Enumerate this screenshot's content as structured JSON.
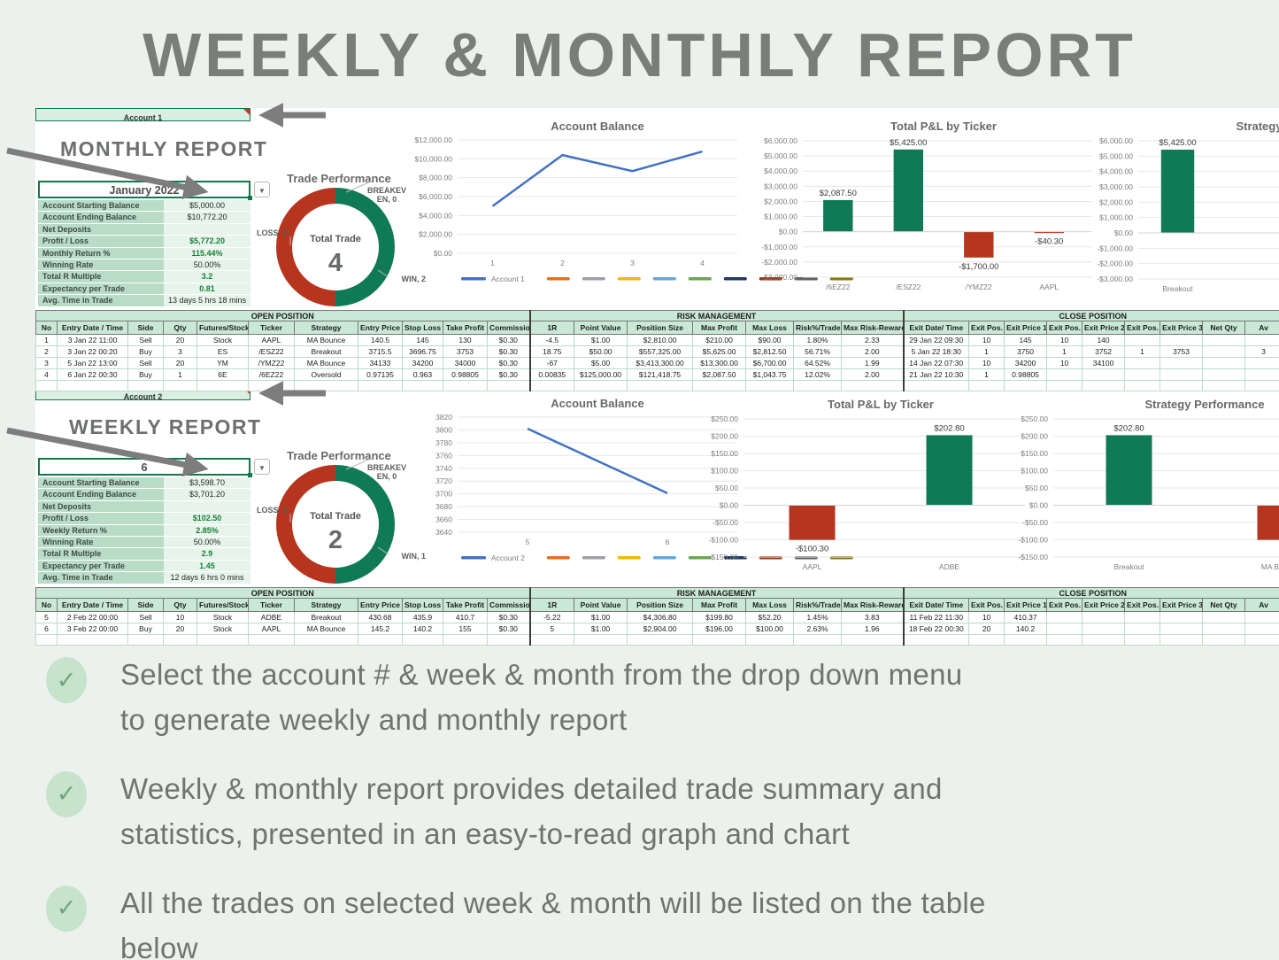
{
  "page": {
    "title": "WEEKLY & MONTHLY REPORT"
  },
  "colors": {
    "green": "#107a57",
    "red": "#b5351e",
    "blue": "#4472c4",
    "accent_text": "#188038",
    "legend_extras": [
      "#e2711d",
      "#9aa0a6",
      "#f2b50a",
      "#62a8dc",
      "#6aa84f",
      "#1f3864",
      "#9c3410",
      "#616161",
      "#8a7a0d"
    ]
  },
  "monthly": {
    "tab": "Account 1",
    "heading": "MONTHLY REPORT",
    "dropdown": {
      "value": "January 2022"
    },
    "stats": [
      {
        "label": "Account Starting Balance",
        "value": "$5,000.00",
        "accent": false
      },
      {
        "label": "Account Ending Balance",
        "value": "$10,772.20",
        "accent": false
      },
      {
        "label": "Net Deposits",
        "value": "",
        "accent": false
      },
      {
        "label": "Profit / Loss",
        "value": "$5,772.20",
        "accent": true
      },
      {
        "label": "Monthly Return %",
        "value": "115.44%",
        "accent": true
      },
      {
        "label": "Winning Rate",
        "value": "50.00%",
        "accent": false
      },
      {
        "label": "Total R Multiple",
        "value": "3.2",
        "accent": true
      },
      {
        "label": "Expectancy per Trade",
        "value": "0.81",
        "accent": true
      },
      {
        "label": "Avg. Time in Trade",
        "value": "13 days 5 hrs 18 mins",
        "accent": false
      }
    ],
    "donut": {
      "title": "Trade Performance",
      "center_label": "Total Trade",
      "total": "4",
      "breakeven_label": "BREAKEVEN, 0",
      "loss_label": "LOSS, 2",
      "win_label": "WIN, 2",
      "win": 2,
      "loss": 2,
      "breakeven": 0
    },
    "balance_chart": {
      "type": "line",
      "title": "Account Balance",
      "legend": "Account 1",
      "x": [
        "1",
        "2",
        "3",
        "4"
      ],
      "values": [
        5000,
        10400,
        8700,
        10772
      ],
      "ymin": 0,
      "ymax": 12000,
      "ystep": 2000,
      "tick_format": "usd"
    },
    "pnl_chart": {
      "type": "bar",
      "title": "Total P&L by Ticker",
      "categories": [
        "/6EZ22",
        "/ESZ22",
        "/YMZ22",
        "AAPL"
      ],
      "values": [
        2087.5,
        5425,
        -1700,
        -40.3
      ],
      "value_labels": [
        "$2,087.50",
        "$5,425.00",
        "-$1,700.00",
        "-$40.30"
      ],
      "ymin": -3000,
      "ymax": 6000,
      "ystep": 1000,
      "tick_format": "usd"
    },
    "strategy_chart": {
      "type": "bar",
      "title": "Strategy Performance",
      "categories": [
        "Breakout"
      ],
      "values": [
        5425
      ],
      "value_labels": [
        "$5,425.00"
      ],
      "ymin": -3000,
      "ymax": 6000,
      "ystep": 1000,
      "tick_format": "usd"
    },
    "trades": {
      "section_headers": [
        "OPEN POSITION",
        "RISK MANAGEMENT",
        "CLOSE POSITION"
      ],
      "columns": [
        "No",
        "Entry Date / Time",
        "Side",
        "Qty",
        "Futures/Stock",
        "Ticker",
        "Strategy",
        "Entry Price",
        "Stop Loss",
        "Take Profit",
        "Commission",
        "1R",
        "Point Value",
        "Position Size",
        "Max Profit",
        "Max Loss",
        "Risk%/Trade",
        "Max Risk-Reward",
        "Exit Date/ Time",
        "Exit Pos. 1",
        "Exit Price 1",
        "Exit Pos. 2",
        "Exit Price 2",
        "Exit Pos. 3",
        "Exit Price 3",
        "Net Qty",
        "Av"
      ],
      "rows": [
        [
          "1",
          "3 Jan 22 11:00",
          "Sell",
          "20",
          "Stock",
          "AAPL",
          "MA Bounce",
          "140.5",
          "145",
          "130",
          "$0.30",
          "-4.5",
          "$1.00",
          "$2,810.00",
          "$210.00",
          "$90.00",
          "1.80%",
          "2.33",
          "29 Jan 22 09:30",
          "10",
          "145",
          "10",
          "140",
          "",
          "",
          "",
          ""
        ],
        [
          "2",
          "3 Jan 22 00:20",
          "Buy",
          "3",
          "ES",
          "/ESZ22",
          "Breakout",
          "3715.5",
          "3696.75",
          "3753",
          "$0.30",
          "18.75",
          "$50.00",
          "$557,325.00",
          "$5,625.00",
          "$2,812.50",
          "56.71%",
          "2.00",
          "5 Jan 22 18:30",
          "1",
          "3750",
          "1",
          "3752",
          "1",
          "3753",
          "",
          "3"
        ],
        [
          "3",
          "5 Jan 22 13:00",
          "Sell",
          "20",
          "YM",
          "/YMZ22",
          "MA Bounce",
          "34133",
          "34200",
          "34000",
          "$0.30",
          "-67",
          "$5.00",
          "$3,413,300.00",
          "$13,300.00",
          "$6,700.00",
          "64.52%",
          "1.99",
          "14 Jan 22 07:30",
          "10",
          "34200",
          "10",
          "34100",
          "",
          "",
          "",
          ""
        ],
        [
          "4",
          "6 Jan 22 00:30",
          "Buy",
          "1",
          "6E",
          "/6EZ22",
          "Oversold",
          "0.97135",
          "0.963",
          "0.98805",
          "$0.30",
          "0.00835",
          "$125,000.00",
          "$121,418.75",
          "$2,087.50",
          "$1,043.75",
          "12.02%",
          "2.00",
          "21 Jan 22 10:30",
          "1",
          "0.98805",
          "",
          "",
          "",
          "",
          "",
          ""
        ]
      ]
    }
  },
  "weekly": {
    "tab": "Account 2",
    "heading": "WEEKLY REPORT",
    "dropdown": {
      "value": "6"
    },
    "stats": [
      {
        "label": "Account Starting Balance",
        "value": "$3,598.70",
        "accent": false
      },
      {
        "label": "Account Ending Balance",
        "value": "$3,701.20",
        "accent": false
      },
      {
        "label": "Net Deposits",
        "value": "",
        "accent": false
      },
      {
        "label": "Profit / Loss",
        "value": "$102.50",
        "accent": true
      },
      {
        "label": "Weekly Return %",
        "value": "2.85%",
        "accent": true
      },
      {
        "label": "Winning Rate",
        "value": "50.00%",
        "accent": false
      },
      {
        "label": "Total R Multiple",
        "value": "2.9",
        "accent": true
      },
      {
        "label": "Expectancy per Trade",
        "value": "1.45",
        "accent": true
      },
      {
        "label": "Avg. Time in Trade",
        "value": "12 days 6 hrs 0 mins",
        "accent": false
      }
    ],
    "donut": {
      "title": "Trade Performance",
      "center_label": "Total Trade",
      "total": "2",
      "breakeven_label": "BREAKEVEN, 0",
      "loss_label": "LOSS, 1",
      "win_label": "WIN, 1",
      "win": 1,
      "loss": 1,
      "breakeven": 0
    },
    "balance_chart": {
      "type": "line",
      "title": "Account Balance",
      "legend": "Account 2",
      "x": [
        "5",
        "6"
      ],
      "values": [
        3802,
        3701
      ],
      "ymin": 3640,
      "ymax": 3820,
      "ystep": 20,
      "tick_format": "plain"
    },
    "pnl_chart": {
      "type": "bar",
      "title": "Total P&L by Ticker",
      "categories": [
        "AAPL",
        "ADBE"
      ],
      "values": [
        -100.3,
        202.8
      ],
      "value_labels": [
        "-$100.30",
        "$202.80"
      ],
      "ymin": -150,
      "ymax": 250,
      "ystep": 50,
      "tick_format": "usd"
    },
    "strategy_chart": {
      "type": "bar",
      "title": "Strategy Performance",
      "categories": [
        "Breakout",
        "MA Bounce"
      ],
      "values": [
        202.8,
        -100.3
      ],
      "value_labels": [
        "$202.80",
        ""
      ],
      "ymin": -150,
      "ymax": 250,
      "ystep": 50,
      "tick_format": "usd"
    },
    "trades": {
      "section_headers": [
        "OPEN POSITION",
        "RISK MANAGEMENT",
        "CLOSE POSITION"
      ],
      "columns": [
        "No",
        "Entry Date / Time",
        "Side",
        "Qty",
        "Futures/Stock",
        "Ticker",
        "Strategy",
        "Entry Price",
        "Stop Loss",
        "Take Profit",
        "Commission",
        "1R",
        "Point Value",
        "Position Size",
        "Max Profit",
        "Max Loss",
        "Risk%/Trade",
        "Max Risk-Reward",
        "Exit Date/ Time",
        "Exit Pos. 1",
        "Exit Price 1",
        "Exit Pos. 2",
        "Exit Price 2",
        "Exit Pos. 3",
        "Exit Price 3",
        "Net Qty",
        "Av"
      ],
      "rows": [
        [
          "5",
          "2 Feb 22 00:00",
          "Sell",
          "10",
          "Stock",
          "ADBE",
          "Breakout",
          "430.68",
          "435.9",
          "410.7",
          "$0.30",
          "-5.22",
          "$1.00",
          "$4,306.80",
          "$199.80",
          "$52.20",
          "1.45%",
          "3.83",
          "11 Feb 22 11:30",
          "10",
          "410.37",
          "",
          "",
          "",
          "",
          "",
          ""
        ],
        [
          "6",
          "3 Feb 22 00:00",
          "Buy",
          "20",
          "Stock",
          "AAPL",
          "MA Bounce",
          "145.2",
          "140.2",
          "155",
          "$0.30",
          "5",
          "$1.00",
          "$2,904.00",
          "$196.00",
          "$100.00",
          "2.63%",
          "1.96",
          "18 Feb 22 00:30",
          "20",
          "140.2",
          "",
          "",
          "",
          "",
          "",
          ""
        ]
      ]
    }
  },
  "bullets": [
    "Select the account # & week & month from the drop down menu to generate weekly and monthly report",
    "Weekly & monthly report provides detailed trade summary and statistics, presented in an easy-to-read graph and chart",
    "All the trades on selected week & month will be listed on the table below"
  ]
}
